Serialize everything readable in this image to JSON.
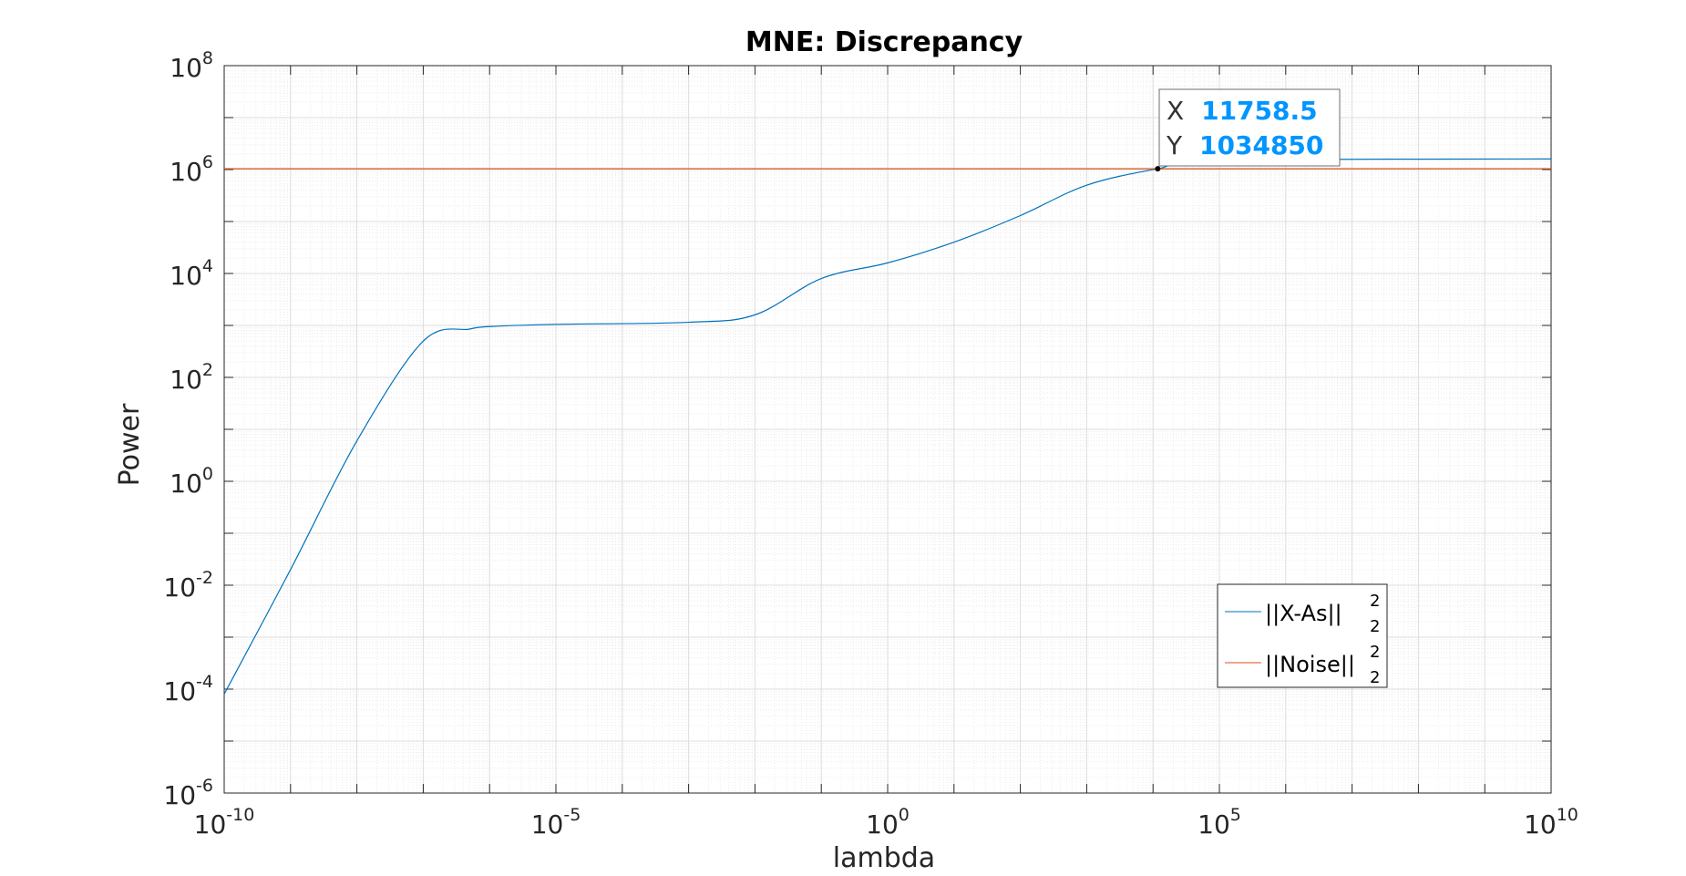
{
  "chart_data": {
    "type": "line",
    "title": "MNE: Discrepancy",
    "xlabel": "lambda",
    "ylabel": "Power",
    "xscale": "log",
    "yscale": "log",
    "xlim": [
      1e-10,
      10000000000.0
    ],
    "ylim": [
      1e-06,
      100000000.0
    ],
    "grid": true,
    "minor_grid": true,
    "x_ticks": [
      {
        "base": "10",
        "exp": "-10"
      },
      {
        "base": "10",
        "exp": "-5"
      },
      {
        "base": "10",
        "exp": "0"
      },
      {
        "base": "10",
        "exp": "5"
      },
      {
        "base": "10",
        "exp": "10"
      }
    ],
    "y_ticks": [
      {
        "base": "10",
        "exp": "-6"
      },
      {
        "base": "10",
        "exp": "-4"
      },
      {
        "base": "10",
        "exp": "-2"
      },
      {
        "base": "10",
        "exp": "0"
      },
      {
        "base": "10",
        "exp": "2"
      },
      {
        "base": "10",
        "exp": "4"
      },
      {
        "base": "10",
        "exp": "6"
      },
      {
        "base": "10",
        "exp": "8"
      }
    ],
    "legend_position": "lower-right",
    "series": [
      {
        "name": "||X-As||",
        "sub": "2",
        "sup": "2",
        "color": "#0072BD",
        "x": [
          1e-10,
          1e-09,
          1e-08,
          1e-07,
          5e-07,
          1e-06,
          1e-05,
          0.001,
          0.01,
          0.1,
          1,
          10,
          100,
          1000,
          11758.5,
          100000.0,
          10000000000.0
        ],
        "y": [
          8e-05,
          0.02,
          6,
          500,
          850,
          950,
          1050,
          1150,
          1600,
          8000,
          16000,
          40000,
          130000.0,
          500000.0,
          1034850,
          1500000.0,
          1600000.0
        ]
      },
      {
        "name": "||Noise||",
        "sub": "2",
        "sup": "2",
        "color": "#D95319",
        "x": [
          1e-10,
          10000000000.0
        ],
        "y": [
          1034850,
          1034850
        ]
      }
    ],
    "datatip": {
      "x_label": "X",
      "x_value": "11758.5",
      "y_label": "Y",
      "y_value": "1034850",
      "x": 11758.5,
      "y": 1034850
    }
  }
}
